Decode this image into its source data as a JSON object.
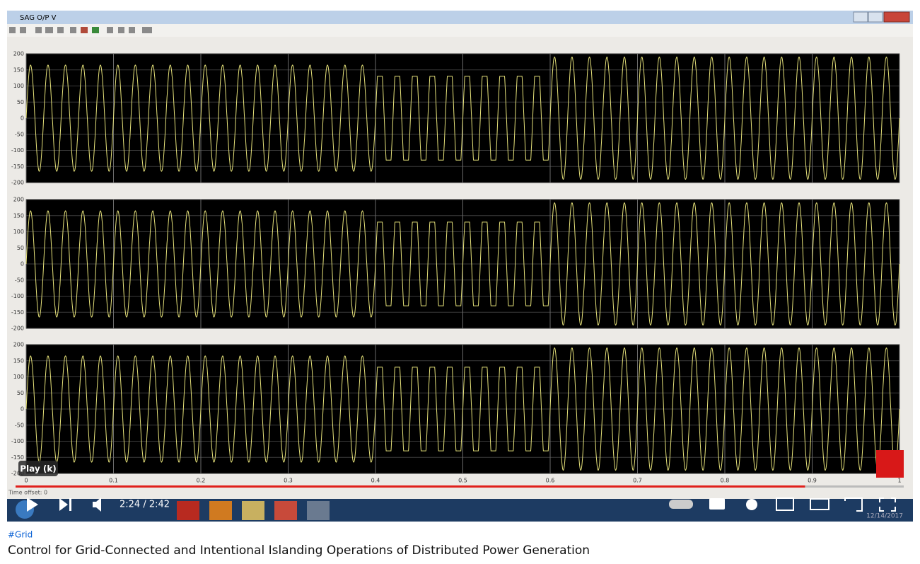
{
  "window": {
    "title": "SAG O/P V"
  },
  "scope": {
    "type": "line",
    "xlim": [
      0,
      1
    ],
    "xticks": [
      0,
      0.1,
      0.2,
      0.3,
      0.4,
      0.5,
      0.6,
      0.7,
      0.8,
      0.9,
      1
    ],
    "time_offset": "Time offset:  0",
    "color": "#e6e27a",
    "grid": true,
    "panels": [
      {
        "ylim": [
          -200,
          200
        ],
        "yticks": [
          200,
          150,
          100,
          50,
          0,
          -50,
          -100,
          -150,
          -200
        ],
        "frequency": 50,
        "segments": [
          {
            "start": 0,
            "end": 0.4,
            "amplitude": 165,
            "shape": "sine"
          },
          {
            "start": 0.4,
            "end": 0.6,
            "amplitude": 130,
            "shape": "clipped"
          },
          {
            "start": 0.6,
            "end": 1,
            "amplitude": 190,
            "shape": "sine"
          }
        ]
      },
      {
        "ylim": [
          -200,
          200
        ],
        "yticks": [
          200,
          150,
          100,
          50,
          0,
          -50,
          -100,
          -150,
          -200
        ],
        "frequency": 50,
        "segments": [
          {
            "start": 0,
            "end": 0.4,
            "amplitude": 165,
            "shape": "sine"
          },
          {
            "start": 0.4,
            "end": 0.6,
            "amplitude": 130,
            "shape": "clipped"
          },
          {
            "start": 0.6,
            "end": 1,
            "amplitude": 190,
            "shape": "sine"
          }
        ]
      },
      {
        "ylim": [
          -200,
          200
        ],
        "yticks": [
          200,
          150,
          100,
          50,
          0,
          -50,
          -100,
          -150,
          -200
        ],
        "frequency": 50,
        "segments": [
          {
            "start": 0,
            "end": 0.4,
            "amplitude": 165,
            "shape": "sine"
          },
          {
            "start": 0.4,
            "end": 0.6,
            "amplitude": 130,
            "shape": "clipped"
          },
          {
            "start": 0.6,
            "end": 1,
            "amplitude": 190,
            "shape": "sine"
          }
        ]
      }
    ]
  },
  "player": {
    "tooltip": "Play (k)",
    "time_display": "2:24 / 2:42",
    "progress_seconds": 144,
    "duration_seconds": 162,
    "clock_date": "12/14/2017"
  },
  "video": {
    "hashtag": "#Grid",
    "title": "Control for Grid-Connected and Intentional Islanding Operations of Distributed Power Generation"
  }
}
